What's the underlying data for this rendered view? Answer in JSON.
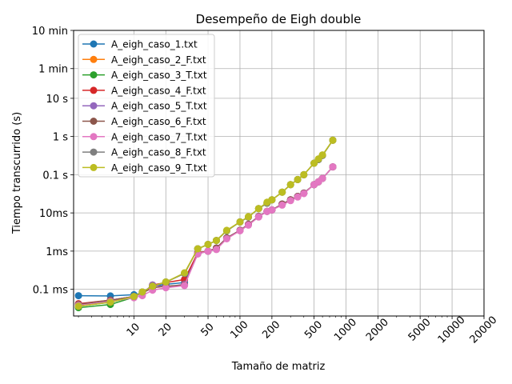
{
  "chart_data": {
    "type": "line",
    "title": "Desempeño de Eigh double",
    "xlabel": "Tamaño de matriz",
    "ylabel": "Tiempo transcurrido (s)",
    "xscale": "log",
    "yscale": "log",
    "xlim": [
      2.7,
      20000
    ],
    "ylim": [
      2e-05,
      600
    ],
    "grid": true,
    "legend_position": "top-left",
    "x_ticks": [
      {
        "value": 10,
        "label": "10"
      },
      {
        "value": 20,
        "label": "20"
      },
      {
        "value": 50,
        "label": "50"
      },
      {
        "value": 100,
        "label": "100"
      },
      {
        "value": 200,
        "label": "200"
      },
      {
        "value": 500,
        "label": "500"
      },
      {
        "value": 1000,
        "label": "1000"
      },
      {
        "value": 2000,
        "label": "2000"
      },
      {
        "value": 5000,
        "label": "5000"
      },
      {
        "value": 10000,
        "label": "10000"
      },
      {
        "value": 20000,
        "label": "20000"
      }
    ],
    "y_ticks": [
      {
        "value": 0.0001,
        "label": "0.1 ms"
      },
      {
        "value": 0.001,
        "label": "1ms"
      },
      {
        "value": 0.01,
        "label": "10ms"
      },
      {
        "value": 0.1,
        "label": "0.1 s"
      },
      {
        "value": 1,
        "label": "1 s"
      },
      {
        "value": 10,
        "label": "10 s"
      },
      {
        "value": 60,
        "label": "1 min"
      },
      {
        "value": 600,
        "label": "10 min"
      }
    ],
    "series": [
      {
        "name": "A_eigh_caso_1.txt",
        "color": "#1f77b4",
        "x": [
          3,
          6,
          10,
          12,
          15,
          20,
          30,
          40,
          50,
          60,
          75,
          100,
          120,
          150,
          180,
          200,
          250,
          300,
          350,
          400,
          500,
          550,
          600,
          750
        ],
        "y": [
          6.8e-05,
          6.7e-05,
          7.2e-05,
          8e-05,
          0.00012,
          0.000135,
          0.00015,
          0.0009,
          0.001,
          0.0012,
          0.0022,
          0.0035,
          0.005,
          0.008,
          0.011,
          0.012,
          0.017,
          0.022,
          0.027,
          0.033,
          0.055,
          0.065,
          0.08,
          0.16
        ]
      },
      {
        "name": "A_eigh_caso_2_F.txt",
        "color": "#ff7f0e",
        "x": [
          3,
          6,
          10,
          12,
          15,
          20,
          30,
          40,
          50,
          60,
          75,
          100,
          120,
          150,
          180,
          200,
          250,
          300,
          350,
          400,
          500,
          550,
          600,
          750
        ],
        "y": [
          3.6e-05,
          4.6e-05,
          6.5e-05,
          8.5e-05,
          0.00012,
          0.000155,
          0.00026,
          0.00115,
          0.0015,
          0.0019,
          0.0034,
          0.0058,
          0.0078,
          0.013,
          0.018,
          0.022,
          0.035,
          0.055,
          0.075,
          0.1,
          0.2,
          0.25,
          0.32,
          0.8
        ]
      },
      {
        "name": "A_eigh_caso_3_T.txt",
        "color": "#2ca02c",
        "x": [
          3,
          6,
          10,
          12,
          15,
          20,
          30,
          40,
          50,
          60,
          75,
          100,
          120,
          150,
          180,
          200,
          250,
          300,
          350,
          400,
          500,
          550,
          600,
          750
        ],
        "y": [
          3.3e-05,
          4e-05,
          6.2e-05,
          8.5e-05,
          0.00012,
          0.000155,
          0.00026,
          0.00115,
          0.0015,
          0.0019,
          0.0034,
          0.0058,
          0.0078,
          0.013,
          0.018,
          0.022,
          0.035,
          0.055,
          0.075,
          0.1,
          0.2,
          0.25,
          0.32,
          0.8
        ]
      },
      {
        "name": "A_eigh_caso_4_F.txt",
        "color": "#d62728",
        "x": [
          3,
          6,
          10,
          12,
          15,
          20,
          30,
          40,
          50,
          60,
          75,
          100,
          120,
          150,
          180,
          200,
          250,
          300,
          350,
          400,
          500,
          550,
          600,
          750
        ],
        "y": [
          4.2e-05,
          5.2e-05,
          6.5e-05,
          8e-05,
          0.00013,
          0.00015,
          0.00018,
          0.0009,
          0.001,
          0.0012,
          0.0022,
          0.0035,
          0.005,
          0.008,
          0.011,
          0.012,
          0.017,
          0.022,
          0.027,
          0.033,
          0.055,
          0.065,
          0.08,
          0.16
        ]
      },
      {
        "name": "A_eigh_caso_5_T.txt",
        "color": "#9467bd",
        "x": [
          3,
          6,
          10,
          12,
          15,
          20,
          30,
          40,
          50,
          60,
          75,
          100,
          120,
          150,
          180,
          200,
          250,
          300,
          350,
          400,
          500,
          550,
          600,
          750
        ],
        "y": [
          4e-05,
          5.2e-05,
          6.5e-05,
          8e-05,
          0.00013,
          0.000115,
          0.000135,
          0.00085,
          0.001,
          0.0012,
          0.0022,
          0.0035,
          0.005,
          0.008,
          0.011,
          0.012,
          0.017,
          0.022,
          0.027,
          0.033,
          0.055,
          0.065,
          0.08,
          0.16
        ]
      },
      {
        "name": "A_eigh_caso_6_F.txt",
        "color": "#8c564b",
        "x": [
          3,
          6,
          10,
          12,
          15,
          20,
          30,
          40,
          50,
          60,
          75,
          100,
          120,
          150,
          180,
          200,
          250,
          300,
          350,
          400,
          500,
          550,
          600,
          750
        ],
        "y": [
          4e-05,
          5.2e-05,
          6.5e-05,
          8e-05,
          0.00011,
          0.00012,
          0.00013,
          0.00085,
          0.001,
          0.0012,
          0.0022,
          0.0035,
          0.005,
          0.008,
          0.011,
          0.012,
          0.017,
          0.022,
          0.027,
          0.033,
          0.055,
          0.065,
          0.08,
          0.16
        ]
      },
      {
        "name": "A_eigh_caso_7_T.txt",
        "color": "#e377c2",
        "x": [
          3,
          6,
          10,
          12,
          15,
          20,
          30,
          40,
          50,
          60,
          75,
          100,
          120,
          150,
          180,
          200,
          250,
          300,
          350,
          400,
          500,
          550,
          600,
          750
        ],
        "y": [
          3.8e-05,
          4.8e-05,
          6e-05,
          6.8e-05,
          9.5e-05,
          0.00011,
          0.000125,
          0.00085,
          0.001,
          0.0011,
          0.0021,
          0.0034,
          0.0048,
          0.0078,
          0.011,
          0.012,
          0.016,
          0.021,
          0.026,
          0.032,
          0.055,
          0.065,
          0.08,
          0.16
        ]
      },
      {
        "name": "A_eigh_caso_8_F.txt",
        "color": "#7f7f7f",
        "x": [
          3,
          6,
          10,
          12,
          15,
          20,
          30,
          40,
          50,
          60,
          75,
          100,
          120,
          150,
          180,
          200,
          250,
          300,
          350,
          400,
          500,
          550,
          600,
          750
        ],
        "y": [
          3.6e-05,
          4.6e-05,
          6.5e-05,
          8.5e-05,
          0.00012,
          0.000155,
          0.00026,
          0.00115,
          0.0015,
          0.0019,
          0.0034,
          0.0058,
          0.0078,
          0.013,
          0.018,
          0.022,
          0.035,
          0.055,
          0.075,
          0.1,
          0.2,
          0.25,
          0.32,
          0.8
        ]
      },
      {
        "name": "A_eigh_caso_9_T.txt",
        "color": "#bcbd22",
        "x": [
          3,
          6,
          10,
          12,
          15,
          20,
          30,
          40,
          50,
          60,
          75,
          100,
          120,
          150,
          180,
          200,
          250,
          300,
          350,
          400,
          500,
          550,
          600,
          750
        ],
        "y": [
          3.6e-05,
          4.6e-05,
          6.5e-05,
          8.5e-05,
          0.00012,
          0.000155,
          0.00027,
          0.00115,
          0.0015,
          0.0019,
          0.0035,
          0.0058,
          0.008,
          0.013,
          0.019,
          0.022,
          0.035,
          0.055,
          0.075,
          0.1,
          0.2,
          0.26,
          0.33,
          0.8
        ]
      }
    ]
  }
}
